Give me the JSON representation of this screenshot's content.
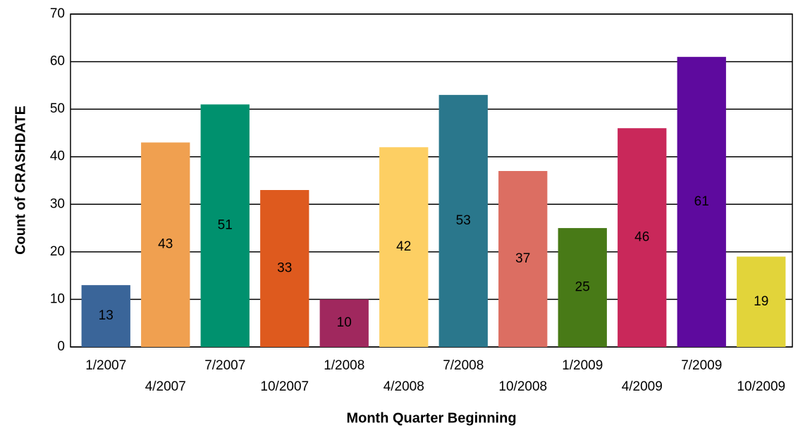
{
  "chart_data": {
    "type": "bar",
    "x_label": "Month Quarter Beginning",
    "y_label": "Count of CRASHDATE",
    "categories": [
      "1/2007",
      "4/2007",
      "7/2007",
      "10/2007",
      "1/2008",
      "4/2008",
      "7/2008",
      "10/2008",
      "1/2009",
      "4/2009",
      "7/2009",
      "10/2009"
    ],
    "values": [
      13,
      43,
      51,
      33,
      10,
      42,
      53,
      37,
      25,
      46,
      61,
      19
    ],
    "colors": [
      "#3a6599",
      "#f0a050",
      "#00916e",
      "#de5a1e",
      "#a0285e",
      "#fdcf63",
      "#2a778c",
      "#dc6e62",
      "#487a17",
      "#c9285a",
      "#5e0a9e",
      "#e2d43a"
    ],
    "ylim": [
      0,
      70
    ],
    "yticks": [
      0,
      10,
      20,
      30,
      40,
      50,
      60,
      70
    ],
    "grid": true
  }
}
